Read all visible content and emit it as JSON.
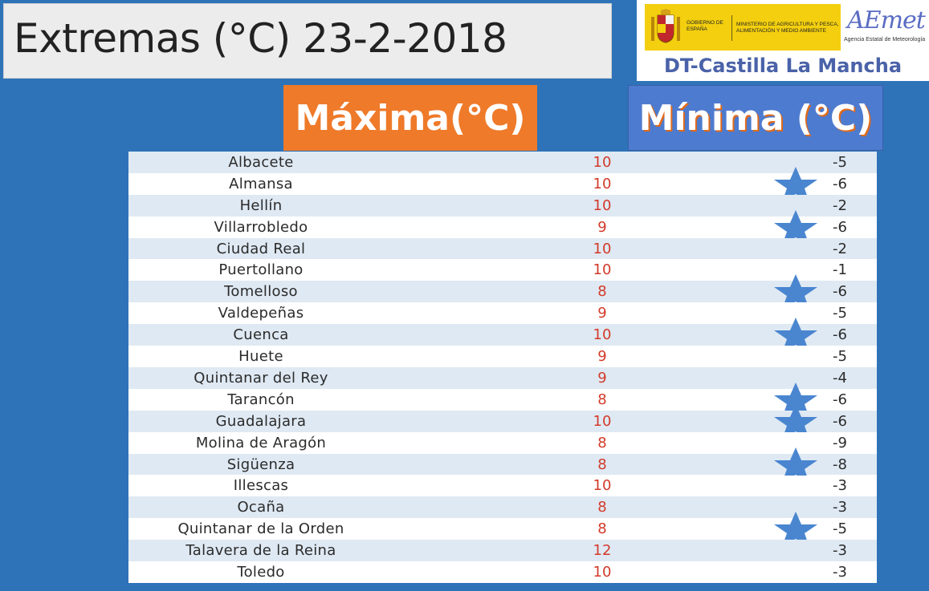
{
  "header": {
    "title": "Extremas (°C) 23-2-2018"
  },
  "logo": {
    "gov_name": "GOBIERNO DE ESPAÑA",
    "ministry": "MINISTERIO DE AGRICULTURA Y PESCA, ALIMENTACIÓN Y MEDIO AMBIENTE",
    "aemet": "AEmet",
    "aemet_sub": "Agencia Estatal de Meteorología",
    "region": "DT-Castilla La Mancha"
  },
  "columns": {
    "max_label": "Máxima(°C)",
    "min_label": "Mínima (°C)"
  },
  "colors": {
    "background": "#2e73b8",
    "max_header": "#ee7a2a",
    "min_header": "#4d7bcf",
    "max_value": "#d33a2a",
    "star": "#4a86d0"
  },
  "icons": {
    "record": "star-icon"
  },
  "rows": [
    {
      "name": "Albacete",
      "max": "10",
      "min": "-5",
      "star": false
    },
    {
      "name": "Almansa",
      "max": "10",
      "min": "-6",
      "star": true
    },
    {
      "name": "Hellín",
      "max": "10",
      "min": "-2",
      "star": false
    },
    {
      "name": "Villarrobledo",
      "max": "9",
      "min": "-6",
      "star": true
    },
    {
      "name": "Ciudad Real",
      "max": "10",
      "min": "-2",
      "star": false
    },
    {
      "name": "Puertollano",
      "max": "10",
      "min": "-1",
      "star": false
    },
    {
      "name": "Tomelloso",
      "max": "8",
      "min": "-6",
      "star": true
    },
    {
      "name": "Valdepeñas",
      "max": "9",
      "min": "-5",
      "star": false
    },
    {
      "name": "Cuenca",
      "max": "10",
      "min": "-6",
      "star": true
    },
    {
      "name": "Huete",
      "max": "9",
      "min": "-5",
      "star": false
    },
    {
      "name": "Quintanar del Rey",
      "max": "9",
      "min": "-4",
      "star": false
    },
    {
      "name": "Tarancón",
      "max": "8",
      "min": "-6",
      "star": true
    },
    {
      "name": "Guadalajara",
      "max": "10",
      "min": "-6",
      "star": true
    },
    {
      "name": "Molina de Aragón",
      "max": "8",
      "min": "-9",
      "star": false
    },
    {
      "name": "Sigüenza",
      "max": "8",
      "min": "-8",
      "star": true
    },
    {
      "name": "Illescas",
      "max": "10",
      "min": "-3",
      "star": false
    },
    {
      "name": "Ocaña",
      "max": "8",
      "min": "-3",
      "star": false
    },
    {
      "name": "Quintanar de la Orden",
      "max": "8",
      "min": "-5",
      "star": true
    },
    {
      "name": "Talavera de la Reina",
      "max": "12",
      "min": "-3",
      "star": false
    },
    {
      "name": "Toledo",
      "max": "10",
      "min": "-3",
      "star": false
    }
  ]
}
